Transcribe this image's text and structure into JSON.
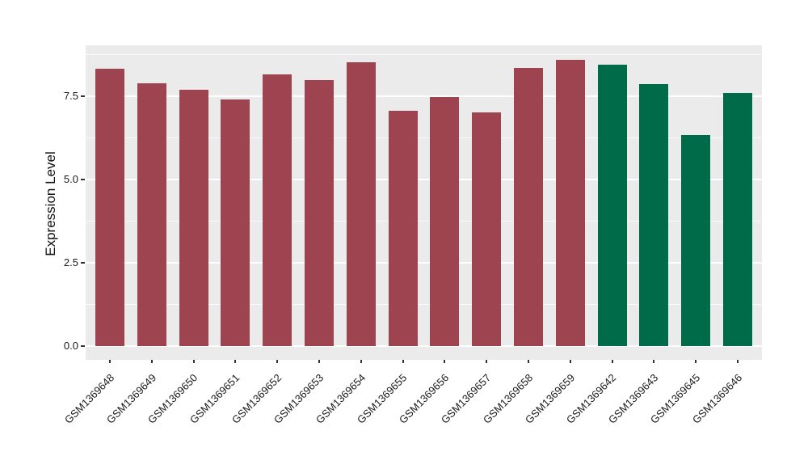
{
  "chart_data": {
    "type": "bar",
    "title": "",
    "xlabel": "",
    "ylabel": "Expression Level",
    "categories": [
      "GSM1369648",
      "GSM1369649",
      "GSM1369650",
      "GSM1369651",
      "GSM1369652",
      "GSM1369653",
      "GSM1369654",
      "GSM1369655",
      "GSM1369656",
      "GSM1369657",
      "GSM1369658",
      "GSM1369659",
      "GSM1369642",
      "GSM1369643",
      "GSM1369645",
      "GSM1369646"
    ],
    "values": [
      8.32,
      7.87,
      7.7,
      7.4,
      8.15,
      7.98,
      8.51,
      7.07,
      7.48,
      7.02,
      8.34,
      8.59,
      8.45,
      7.86,
      6.32,
      7.6
    ],
    "groups": [
      "group1",
      "group1",
      "group1",
      "group1",
      "group1",
      "group1",
      "group1",
      "group1",
      "group1",
      "group1",
      "group1",
      "group1",
      "group2",
      "group2",
      "group2",
      "group2"
    ],
    "group_colors": {
      "group1": "#9E4450",
      "group2": "#006B48"
    },
    "ytick_labels": [
      "0.0",
      "2.5",
      "5.0",
      "7.5"
    ],
    "ytick_values": [
      0,
      2.5,
      5,
      7.5
    ],
    "minor_tick_values": [
      1.25,
      3.75,
      6.25,
      8.75
    ],
    "ylim": [
      -0.4,
      9.02
    ],
    "grid": true,
    "legend_position": "none",
    "panel_bg": "#EBEBEB",
    "grid_color": "#FFFFFF",
    "x_label_rotation": 45
  }
}
